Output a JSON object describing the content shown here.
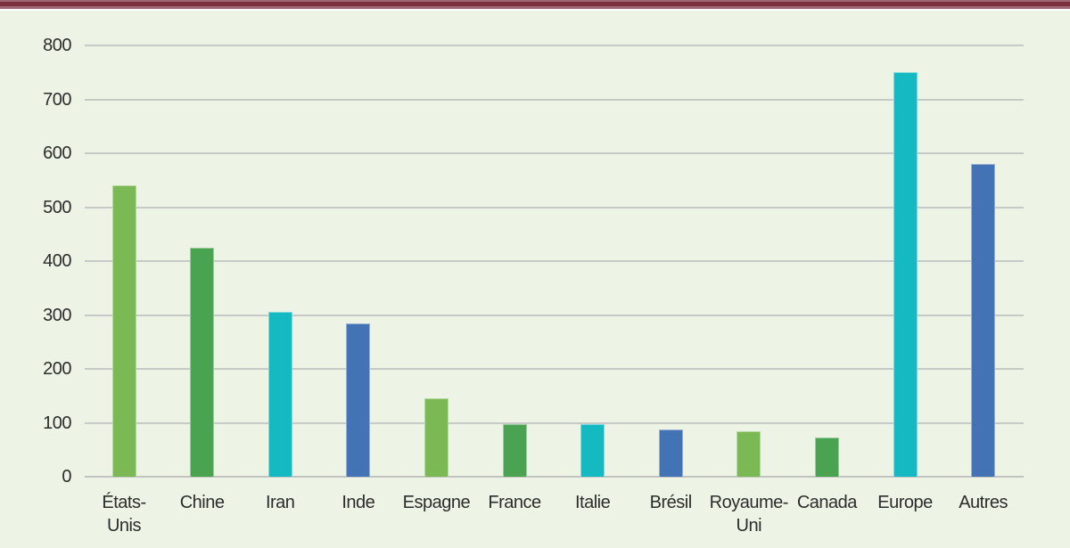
{
  "page": {
    "background": "#ffffff",
    "panel_background": "#edf4e5",
    "top_rule_center_color": "#7c3040",
    "top_rule_edge_color": "#9d6874",
    "text_color": "#2c2c2c",
    "gridline_color": "#c7c9c6",
    "baseline_color": "#c2c4c1"
  },
  "chart_data": {
    "type": "bar",
    "title": "",
    "xlabel": "",
    "ylabel": "",
    "categories": [
      "États-\nUnis",
      "Chine",
      "Iran",
      "Inde",
      "Espagne",
      "France",
      "Italie",
      "Brésil",
      "Royaume-\nUni",
      "Canada",
      "Europe",
      "Autres"
    ],
    "values": [
      540,
      425,
      305,
      285,
      145,
      97,
      97,
      88,
      84,
      72,
      750,
      580
    ],
    "bar_colors": [
      "#7ab953",
      "#4aa351",
      "#14b9c2",
      "#4473b5",
      "#7ab953",
      "#4aa351",
      "#14b9c2",
      "#4473b5",
      "#7ab953",
      "#4aa351",
      "#14b9c2",
      "#4473b5"
    ],
    "color_cycle": {
      "light_green": "#7ab953",
      "green": "#4aa351",
      "cyan": "#14b9c2",
      "blue": "#4473b5"
    },
    "ylim": [
      0,
      800
    ],
    "yticks": [
      0,
      100,
      200,
      300,
      400,
      500,
      600,
      700,
      800
    ],
    "grid": true,
    "legend": false
  }
}
